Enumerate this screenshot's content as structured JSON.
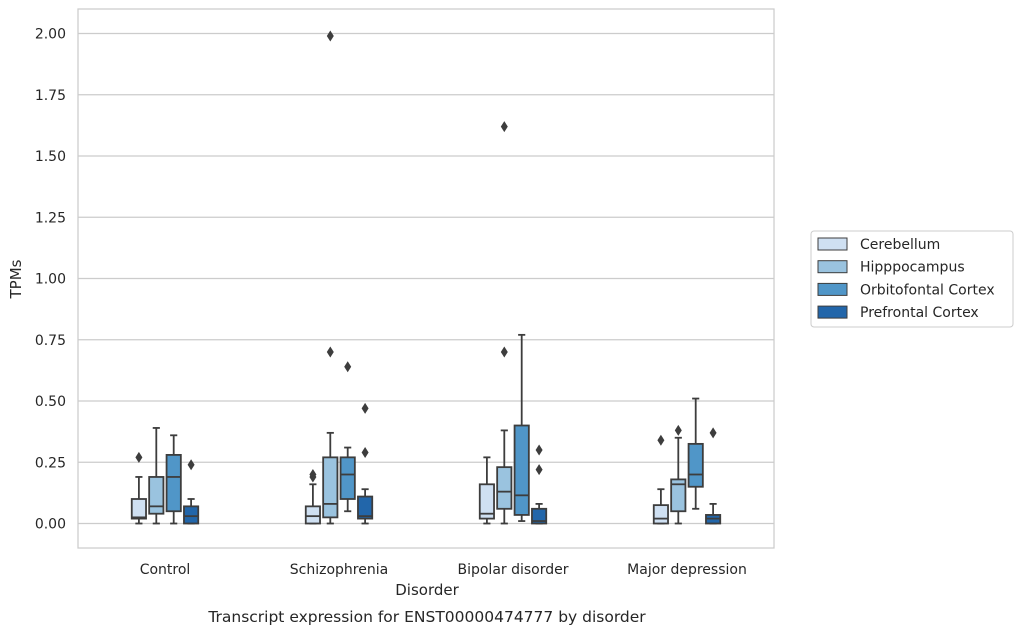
{
  "chart_data": {
    "type": "box",
    "caption": "Transcript expression for ENST00000474777 by disorder",
    "xlabel": "Disorder",
    "ylabel": "TPMs",
    "ylim": [
      -0.1,
      2.1
    ],
    "yticks": [
      0.0,
      0.25,
      0.5,
      0.75,
      1.0,
      1.25,
      1.5,
      1.75,
      2.0
    ],
    "ytick_labels": [
      "0.00",
      "0.25",
      "0.50",
      "0.75",
      "1.00",
      "1.25",
      "1.50",
      "1.75",
      "2.00"
    ],
    "grid": "horizontal",
    "legend_placement": "right",
    "categories": [
      "Control",
      "Schizophrenia",
      "Bipolar disorder",
      "Major depression"
    ],
    "series": [
      {
        "name": "Cerebellum",
        "color": "#cfe0f2",
        "boxes": [
          {
            "whislo": 0.0,
            "q1": 0.02,
            "med": 0.025,
            "q3": 0.1,
            "whishi": 0.19,
            "fliers": [
              0.27
            ]
          },
          {
            "whislo": 0.0,
            "q1": 0.0,
            "med": 0.03,
            "q3": 0.07,
            "whishi": 0.16,
            "fliers": [
              0.19,
              0.2
            ]
          },
          {
            "whislo": 0.0,
            "q1": 0.02,
            "med": 0.04,
            "q3": 0.16,
            "whishi": 0.27,
            "fliers": []
          },
          {
            "whislo": 0.0,
            "q1": 0.0,
            "med": 0.02,
            "q3": 0.075,
            "whishi": 0.14,
            "fliers": [
              0.34
            ]
          }
        ]
      },
      {
        "name": "Hipppocampus",
        "color": "#9ac3df",
        "boxes": [
          {
            "whislo": 0.0,
            "q1": 0.04,
            "med": 0.07,
            "q3": 0.19,
            "whishi": 0.39,
            "fliers": []
          },
          {
            "whislo": 0.0,
            "q1": 0.025,
            "med": 0.08,
            "q3": 0.27,
            "whishi": 0.37,
            "fliers": [
              0.7,
              1.99
            ]
          },
          {
            "whislo": 0.0,
            "q1": 0.06,
            "med": 0.13,
            "q3": 0.23,
            "whishi": 0.38,
            "fliers": [
              0.7,
              1.62
            ]
          },
          {
            "whislo": 0.0,
            "q1": 0.05,
            "med": 0.16,
            "q3": 0.18,
            "whishi": 0.35,
            "fliers": [
              0.38
            ]
          }
        ]
      },
      {
        "name": "Orbitofontal Cortex",
        "color": "#5096c8",
        "boxes": [
          {
            "whislo": 0.0,
            "q1": 0.05,
            "med": 0.19,
            "q3": 0.28,
            "whishi": 0.36,
            "fliers": []
          },
          {
            "whislo": 0.05,
            "q1": 0.1,
            "med": 0.2,
            "q3": 0.27,
            "whishi": 0.31,
            "fliers": [
              0.64
            ]
          },
          {
            "whislo": 0.01,
            "q1": 0.035,
            "med": 0.115,
            "q3": 0.4,
            "whishi": 0.77,
            "fliers": []
          },
          {
            "whislo": 0.06,
            "q1": 0.15,
            "med": 0.2,
            "q3": 0.325,
            "whishi": 0.51,
            "fliers": []
          }
        ]
      },
      {
        "name": "Prefrontal Cortex",
        "color": "#2266aa",
        "boxes": [
          {
            "whislo": 0.0,
            "q1": 0.0,
            "med": 0.03,
            "q3": 0.07,
            "whishi": 0.1,
            "fliers": [
              0.24
            ]
          },
          {
            "whislo": 0.0,
            "q1": 0.02,
            "med": 0.03,
            "q3": 0.11,
            "whishi": 0.14,
            "fliers": [
              0.29,
              0.47
            ]
          },
          {
            "whislo": 0.0,
            "q1": 0.0,
            "med": 0.01,
            "q3": 0.06,
            "whishi": 0.08,
            "fliers": [
              0.22,
              0.3
            ]
          },
          {
            "whislo": 0.0,
            "q1": 0.0,
            "med": 0.02,
            "q3": 0.035,
            "whishi": 0.08,
            "fliers": [
              0.37
            ]
          }
        ]
      }
    ]
  }
}
